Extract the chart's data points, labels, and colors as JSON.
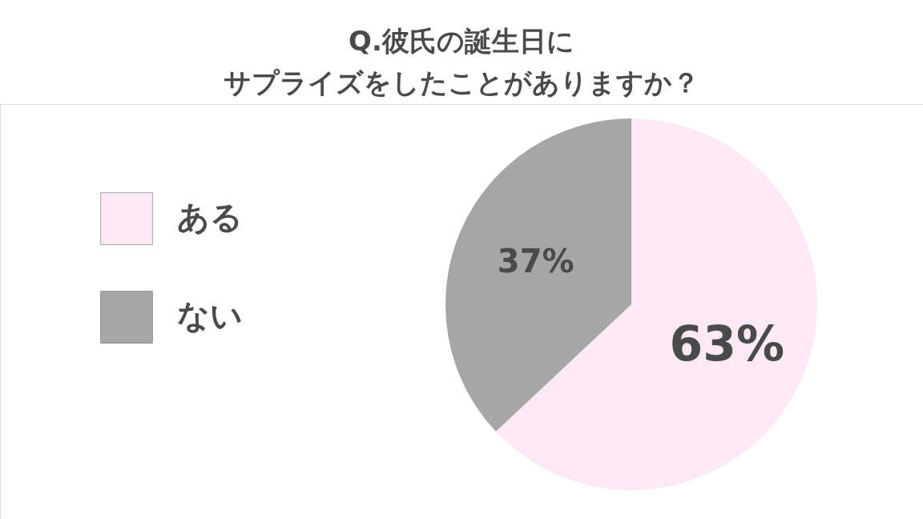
{
  "chart_data": {
    "type": "pie",
    "title": "Q.彼氏の誕生日に",
    "subtitle": "サプライズをしたことがありますか？",
    "categories": [
      "ある",
      "ない"
    ],
    "values": [
      63,
      37
    ],
    "colors": [
      "#fde9f5",
      "#a6a6a6"
    ],
    "value_labels": [
      "63%",
      "37%"
    ],
    "legend": "left"
  }
}
